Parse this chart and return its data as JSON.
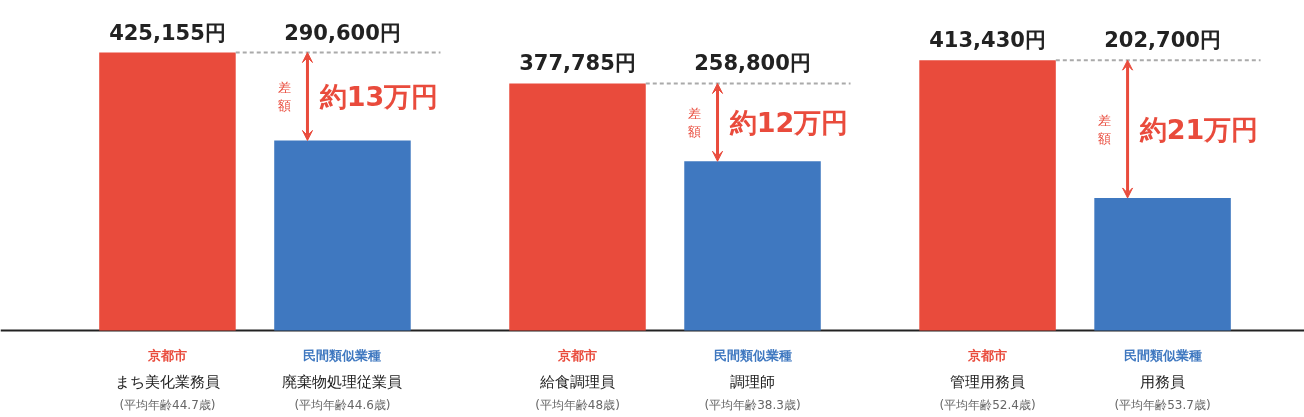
{
  "chart_data": {
    "type": "bar",
    "categories": [
      "まち美化業務員",
      "廃棄物処理従業員",
      "給食調理員",
      "調理師",
      "管理用務員",
      "用務員"
    ],
    "series": [
      {
        "name": "京都市",
        "color": "#e94b3c",
        "values": [
          425155,
          null,
          377785,
          null,
          413430,
          null
        ],
        "value_labels": [
          "425,155円",
          null,
          "377,785円",
          null,
          "413,430円",
          null
        ]
      },
      {
        "name": "民間類似業種",
        "color": "#3f78c0",
        "values": [
          null,
          290600,
          null,
          258800,
          null,
          202700
        ],
        "value_labels": [
          null,
          "290,600円",
          null,
          "258,800円",
          null,
          "202,700円"
        ]
      }
    ],
    "annotations": [
      "差額",
      "約13万円",
      "差額",
      "約12万円",
      "差額",
      "約21万円",
      "(平均年齢44.7歳)",
      "(平均年齢44.6歳)",
      "(平均年齢48歳)",
      "(平均年齢38.3歳)",
      "(平均年齢52.4歳)",
      "(平均年齢53.7歳)"
    ],
    "grid": false
  }
}
